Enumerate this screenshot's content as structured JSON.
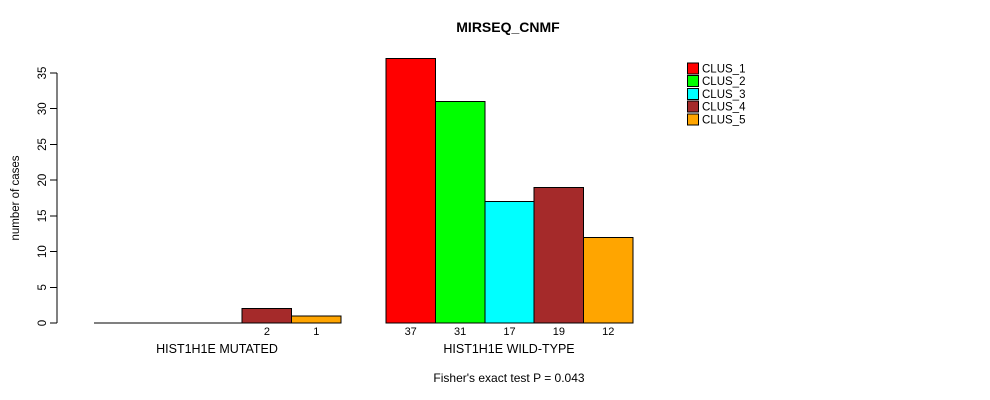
{
  "chart_data": {
    "type": "bar",
    "title": "MIRSEQ_CNMF",
    "ylabel": "number of cases",
    "xlabel": "",
    "ylim": [
      0,
      35
    ],
    "yticks": [
      0,
      5,
      10,
      15,
      20,
      25,
      30,
      35
    ],
    "grid": false,
    "legend_position": "topright",
    "categories": [
      "HIST1H1E MUTATED",
      "HIST1H1E WILD-TYPE"
    ],
    "series": [
      {
        "name": "CLUS_1",
        "color": "#FF0000",
        "values": [
          0,
          37
        ]
      },
      {
        "name": "CLUS_2",
        "color": "#00FF00",
        "values": [
          0,
          31
        ]
      },
      {
        "name": "CLUS_3",
        "color": "#00FFFF",
        "values": [
          0,
          17
        ]
      },
      {
        "name": "CLUS_4",
        "color": "#A52A2A",
        "values": [
          2,
          19
        ]
      },
      {
        "name": "CLUS_5",
        "color": "#FFA500",
        "values": [
          1,
          12
        ]
      }
    ],
    "bar_labels": [
      [
        "",
        "",
        "",
        "2",
        "1"
      ],
      [
        "37",
        "31",
        "17",
        "19",
        "12"
      ]
    ],
    "annotation": "Fisher's exact test P = 0.043",
    "axis_color": "#000000",
    "background": "#FFFFFF"
  }
}
